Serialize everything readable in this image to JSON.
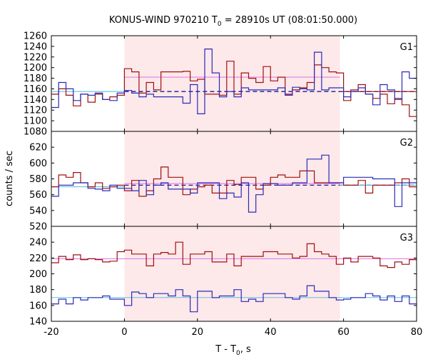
{
  "chart_data": {
    "type": "line",
    "title_main": "KONUS-WIND 970210 T",
    "title_sub": "0",
    "title_rest": " = 28910s UT (08:01:50.000)",
    "xlabel_main": "T - T",
    "xlabel_sub": "0",
    "xlabel_rest": ", s",
    "ylabel": "counts / sec",
    "xlim": [
      -20,
      80
    ],
    "x_ticks": [
      -20,
      0,
      20,
      40,
      60,
      80
    ],
    "shaded_interval": [
      0,
      59
    ],
    "colors": {
      "dark_red": "#a01010",
      "blue": "#2b2bb8",
      "magenta_fit": "#e080e8",
      "cyan_fit": "#60c0e0",
      "dashed_fit": "#1a1a8c",
      "shade": "#fde8ea"
    },
    "bin_edges": [
      -20,
      -18,
      -16,
      -14,
      -12,
      -10,
      -8,
      -6,
      -4,
      -2,
      0,
      2,
      4,
      6,
      8,
      10,
      12,
      14,
      16,
      18,
      20,
      22,
      24,
      26,
      28,
      30,
      32,
      34,
      36,
      38,
      40,
      42,
      44,
      46,
      48,
      50,
      52,
      54,
      56,
      58,
      60,
      62,
      64,
      66,
      68,
      70,
      72,
      74,
      76,
      78,
      80
    ],
    "panels": [
      {
        "label": "G1",
        "ylim": [
          1080,
          1260
        ],
        "y_ticks": [
          1080,
          1100,
          1120,
          1140,
          1160,
          1180,
          1200,
          1220,
          1240,
          1260
        ],
        "series": [
          {
            "color": "dark_red",
            "values": [
              1150,
              1160,
              1148,
              1128,
              1150,
              1135,
              1150,
              1140,
              1145,
              1148,
              1198,
              1192,
              1152,
              1172,
              1158,
              1192,
              1192,
              1192,
              1193,
              1175,
              1178,
              1150,
              1150,
              1148,
              1212,
              1150,
              1190,
              1180,
              1172,
              1202,
              1175,
              1182,
              1150,
              1158,
              1162,
              1172,
              1205,
              1200,
              1192,
              1190,
              1138,
              1158,
              1168,
              1150,
              1142,
              1150,
              1132,
              1142,
              1130,
              1108
            ]
          },
          {
            "color": "blue",
            "values": [
              1125,
              1172,
              1160,
              1138,
              1150,
              1148,
              1152,
              1140,
              1138,
              1152,
              1157,
              1152,
              1145,
              1150,
              1145,
              1145,
              1145,
              1145,
              1133,
              1168,
              1113,
              1235,
              1190,
              1145,
              1155,
              1145,
              1162,
              1158,
              1158,
              1158,
              1158,
              1162,
              1148,
              1163,
              1160,
              1158,
              1229,
              1158,
              1162,
              1162,
              1145,
              1155,
              1162,
              1150,
              1130,
              1168,
              1158,
              1140,
              1192,
              1180
            ]
          }
        ],
        "fit_levels": [
          {
            "value": 1155,
            "from": -20,
            "to": 0,
            "color": "cyan_fit",
            "dashed": false
          },
          {
            "value": 1182,
            "from": 0,
            "to": 59,
            "color": "magenta_fit",
            "dashed": false
          },
          {
            "value": 1155,
            "from": 0,
            "to": 80,
            "color": "dashed_fit",
            "dashed": true
          },
          {
            "value": 1155,
            "from": 59,
            "to": 80,
            "color": "dark_red",
            "dashed": false
          }
        ]
      },
      {
        "label": "G2",
        "ylim": [
          520,
          640
        ],
        "y_ticks": [
          520,
          540,
          560,
          580,
          600,
          620
        ],
        "series": [
          {
            "color": "dark_red",
            "values": [
              570,
              585,
              582,
              588,
              575,
              570,
              575,
              568,
              570,
              572,
              565,
              578,
              558,
              565,
              580,
              595,
              582,
              582,
              560,
              567,
              570,
              572,
              562,
              562,
              578,
              573,
              582,
              582,
              567,
              572,
              582,
              585,
              582,
              582,
              590,
              590,
              575,
              575,
              575,
              575,
              572,
              572,
              578,
              562,
              572,
              572,
              572,
              575,
              580,
              570
            ]
          },
          {
            "color": "blue",
            "values": [
              558,
              572,
              572,
              575,
              575,
              568,
              567,
              565,
              572,
              568,
              568,
              565,
              578,
              560,
              572,
              575,
              567,
              567,
              567,
              562,
              575,
              575,
              575,
              555,
              562,
              557,
              575,
              538,
              560,
              574,
              574,
              572,
              572,
              575,
              575,
              605,
              605,
              610,
              575,
              575,
              582,
              582,
              582,
              582,
              580,
              580,
              580,
              545,
              575,
              575
            ]
          }
        ],
        "fit_levels": [
          {
            "value": 570,
            "from": -20,
            "to": 0,
            "color": "cyan_fit",
            "dashed": false
          },
          {
            "value": 574,
            "from": 0,
            "to": 59,
            "color": "magenta_fit",
            "dashed": false
          },
          {
            "value": 572,
            "from": 0,
            "to": 80,
            "color": "dashed_fit",
            "dashed": true
          },
          {
            "value": 572,
            "from": 59,
            "to": 80,
            "color": "cyan_fit",
            "dashed": false
          }
        ]
      },
      {
        "label": "G3",
        "ylim": [
          140,
          260
        ],
        "y_ticks": [
          140,
          160,
          180,
          200,
          220,
          240
        ],
        "series": [
          {
            "color": "dark_red",
            "values": [
              214,
              222,
              218,
              224,
              218,
              219,
              218,
              215,
              216,
              228,
              230,
              225,
              225,
              210,
              225,
              227,
              225,
              240,
              212,
              225,
              225,
              228,
              215,
              215,
              225,
              210,
              222,
              222,
              222,
              228,
              228,
              225,
              225,
              220,
              222,
              238,
              228,
              225,
              222,
              212,
              220,
              215,
              222,
              222,
              220,
              210,
              208,
              215,
              212,
              218
            ]
          },
          {
            "color": "blue",
            "values": [
              162,
              168,
              162,
              170,
              167,
              170,
              170,
              172,
              168,
              168,
              160,
              177,
              175,
              170,
              175,
              175,
              172,
              180,
              172,
              152,
              178,
              178,
              170,
              172,
              172,
              180,
              165,
              168,
              165,
              175,
              175,
              175,
              170,
              168,
              172,
              185,
              178,
              178,
              170,
              167,
              168,
              170,
              170,
              175,
              172,
              167,
              172,
              165,
              172,
              162
            ]
          }
        ],
        "fit_levels": [
          {
            "value": 219,
            "from": -20,
            "to": 80,
            "color": "magenta_fit",
            "dashed": false
          },
          {
            "value": 170,
            "from": -20,
            "to": 80,
            "color": "cyan_fit",
            "dashed": false
          }
        ]
      }
    ]
  }
}
